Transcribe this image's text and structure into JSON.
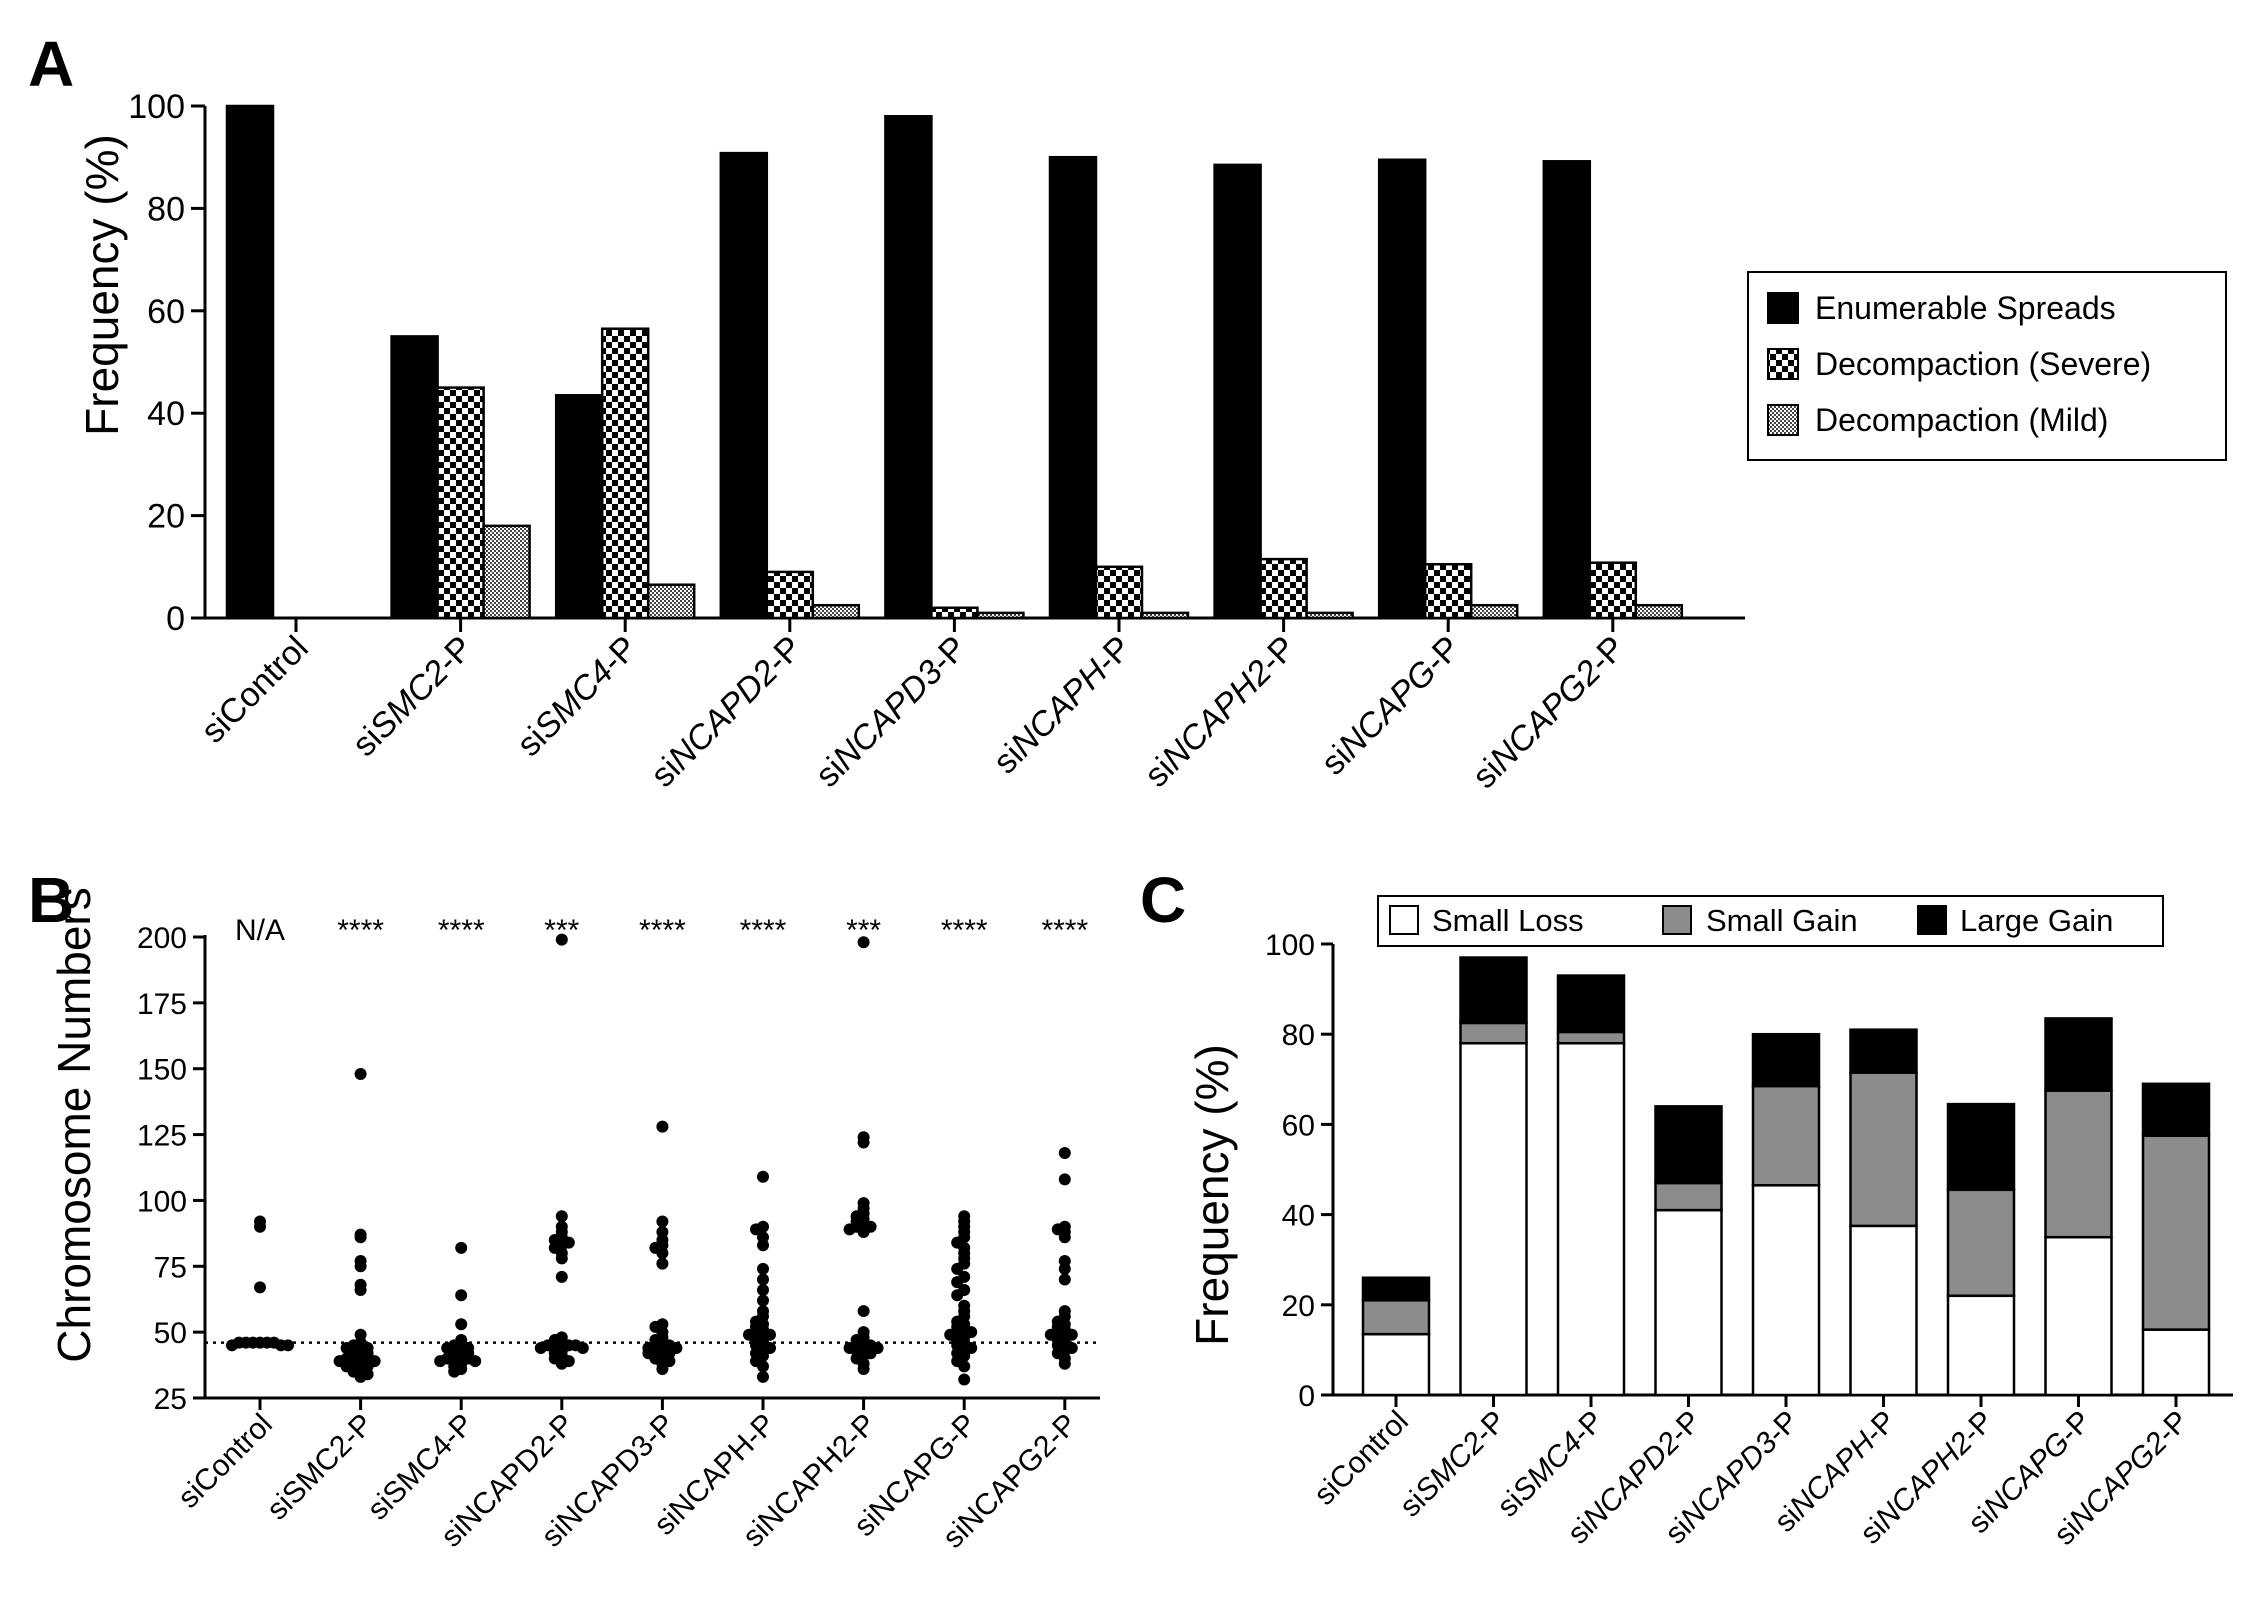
{
  "panels": {
    "A": "A",
    "B": "B",
    "C": "C"
  },
  "categories_plain": [
    "siControl",
    "siSMC2-P",
    "siSMC4-P",
    "siNCAPD2-P",
    "siNCAPD3-P",
    "siNCAPH-P",
    "siNCAPH2-P",
    "siNCAPG-P",
    "siNCAPG2-P"
  ],
  "categories_rich": [
    {
      "pre": "siControl",
      "ital": "",
      "post": ""
    },
    {
      "pre": "si",
      "ital": "SMC2",
      "post": "-P"
    },
    {
      "pre": "si",
      "ital": "SMC4",
      "post": "-P"
    },
    {
      "pre": "si",
      "ital": "NCAPD2",
      "post": "-P"
    },
    {
      "pre": "si",
      "ital": "NCAPD3",
      "post": "-P"
    },
    {
      "pre": "si",
      "ital": "NCAPH",
      "post": "-P"
    },
    {
      "pre": "si",
      "ital": "NCAPH2",
      "post": "-P"
    },
    {
      "pre": "si",
      "ital": "NCAPG",
      "post": "-P"
    },
    {
      "pre": "si",
      "ital": "NCAPG2",
      "post": "-P"
    }
  ],
  "chart_data": [
    {
      "panel": "A",
      "type": "bar",
      "ylabel": "Frequency (%)",
      "ylim": [
        0,
        100
      ],
      "yticks": [
        0,
        20,
        40,
        60,
        80,
        100
      ],
      "legend_position": "right",
      "categories": [
        "siControl",
        "siSMC2-P",
        "siSMC4-P",
        "siNCAPD2-P",
        "siNCAPD3-P",
        "siNCAPH-P",
        "siNCAPH2-P",
        "siNCAPG-P",
        "siNCAPG2-P"
      ],
      "series": [
        {
          "name": "Enumerable Spreads",
          "pattern": "solid",
          "values": [
            100,
            55,
            43.5,
            90.8,
            98,
            90,
            88.5,
            89.5,
            89.2
          ]
        },
        {
          "name": "Decompaction (Severe)",
          "pattern": "checker",
          "values": [
            0,
            45,
            56.5,
            9,
            2,
            10,
            11.5,
            10.5,
            10.8
          ]
        },
        {
          "name": "Decompaction (Mild)",
          "pattern": "fine",
          "values": [
            0,
            18,
            6.5,
            2.5,
            1,
            1,
            1,
            2.5,
            2.5
          ]
        }
      ]
    },
    {
      "panel": "B",
      "type": "scatter",
      "ylabel": "Chromosome Numbers",
      "ylim": [
        25,
        200
      ],
      "yticks": [
        25,
        50,
        75,
        100,
        125,
        150,
        175,
        200
      ],
      "reference_line": 46,
      "significance": [
        "N/A",
        "****",
        "****",
        "***",
        "****",
        "****",
        "***",
        "****",
        "****"
      ],
      "categories": [
        "siControl",
        "siSMC2-P",
        "siSMC4-P",
        "siNCAPD2-P",
        "siNCAPD3-P",
        "siNCAPH-P",
        "siNCAPH2-P",
        "siNCAPG-P",
        "siNCAPG2-P"
      ],
      "points": [
        [
          92,
          90,
          67,
          46,
          46,
          46,
          46,
          46,
          46,
          45,
          45,
          45
        ],
        [
          148,
          87,
          86,
          77,
          75,
          66,
          68,
          49,
          46,
          45,
          44,
          44,
          43,
          42,
          42,
          41,
          41,
          40,
          40,
          39,
          39,
          38,
          38,
          37,
          37,
          36,
          35,
          34,
          33
        ],
        [
          82,
          64,
          53,
          47,
          46,
          45,
          44,
          44,
          43,
          42,
          42,
          41,
          41,
          40,
          40,
          39,
          39,
          38,
          37,
          36,
          35
        ],
        [
          199,
          94,
          90,
          88,
          86,
          85,
          84,
          83,
          82,
          80,
          78,
          71,
          48,
          47,
          46,
          46,
          45,
          45,
          45,
          44,
          44,
          43,
          42,
          41,
          40,
          39,
          38
        ],
        [
          128,
          92,
          88,
          85,
          83,
          82,
          80,
          76,
          53,
          52,
          50,
          48,
          47,
          46,
          45,
          45,
          44,
          44,
          43,
          43,
          42,
          42,
          41,
          40,
          39,
          38,
          36
        ],
        [
          109,
          90,
          89,
          86,
          83,
          74,
          70,
          66,
          62,
          58,
          56,
          54,
          53,
          52,
          51,
          50,
          49,
          49,
          48,
          47,
          46,
          45,
          44,
          43,
          42,
          41,
          39,
          37,
          33
        ],
        [
          198,
          124,
          122,
          99,
          97,
          95,
          94,
          93,
          92,
          91,
          90,
          90,
          89,
          88,
          58,
          50,
          48,
          47,
          46,
          45,
          45,
          44,
          44,
          43,
          43,
          42,
          41,
          40,
          38,
          36
        ],
        [
          94,
          92,
          90,
          88,
          86,
          84,
          82,
          80,
          78,
          76,
          74,
          71,
          69,
          66,
          64,
          60,
          58,
          56,
          54,
          53,
          52,
          51,
          50,
          50,
          49,
          48,
          47,
          46,
          45,
          44,
          43,
          42,
          41,
          39,
          37,
          32
        ],
        [
          118,
          108,
          90,
          89,
          88,
          86,
          77,
          74,
          70,
          58,
          56,
          54,
          53,
          52,
          51,
          50,
          49,
          49,
          48,
          47,
          46,
          45,
          44,
          43,
          42,
          40,
          38
        ]
      ]
    },
    {
      "panel": "C",
      "type": "bar",
      "stacked": true,
      "ylabel": "Frequency (%)",
      "ylim": [
        0,
        100
      ],
      "yticks": [
        0,
        20,
        40,
        60,
        80,
        100
      ],
      "legend_position": "top",
      "categories": [
        "siControl",
        "siSMC2-P",
        "siSMC4-P",
        "siNCAPD2-P",
        "siNCAPD3-P",
        "siNCAPH-P",
        "siNCAPH2-P",
        "siNCAPG-P",
        "siNCAPG2-P"
      ],
      "series": [
        {
          "name": "Small Loss",
          "color": "#ffffff",
          "values": [
            13.5,
            78,
            78,
            41,
            46.5,
            37.5,
            22,
            35,
            14.5
          ]
        },
        {
          "name": "Small Gain",
          "color": "#8c8c8c",
          "values": [
            7.5,
            4.5,
            2.5,
            6,
            22,
            34,
            23.5,
            32.5,
            43
          ]
        },
        {
          "name": "Large Gain",
          "color": "#000000",
          "values": [
            5,
            14.5,
            12.5,
            17,
            11.5,
            9.5,
            19,
            16,
            11.5
          ]
        }
      ]
    }
  ],
  "colors": {
    "ink": "#000000",
    "grey": "#8c8c8c",
    "bg": "#ffffff"
  }
}
